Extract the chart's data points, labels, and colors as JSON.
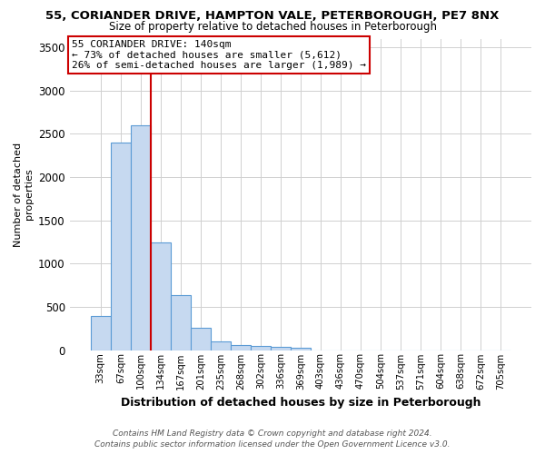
{
  "title": "55, CORIANDER DRIVE, HAMPTON VALE, PETERBOROUGH, PE7 8NX",
  "subtitle": "Size of property relative to detached houses in Peterborough",
  "xlabel": "Distribution of detached houses by size in Peterborough",
  "ylabel": "Number of detached\nproperties",
  "footer_line1": "Contains HM Land Registry data © Crown copyright and database right 2024.",
  "footer_line2": "Contains public sector information licensed under the Open Government Licence v3.0.",
  "bin_labels": [
    "33sqm",
    "67sqm",
    "100sqm",
    "134sqm",
    "167sqm",
    "201sqm",
    "235sqm",
    "268sqm",
    "302sqm",
    "336sqm",
    "369sqm",
    "403sqm",
    "436sqm",
    "470sqm",
    "504sqm",
    "537sqm",
    "571sqm",
    "604sqm",
    "638sqm",
    "672sqm",
    "705sqm"
  ],
  "bar_values": [
    390,
    2400,
    2600,
    1240,
    640,
    255,
    100,
    55,
    50,
    40,
    30,
    0,
    0,
    0,
    0,
    0,
    0,
    0,
    0,
    0,
    0
  ],
  "property_label": "55 CORIANDER DRIVE: 140sqm",
  "annotation_line1": "← 73% of detached houses are smaller (5,612)",
  "annotation_line2": "26% of semi-detached houses are larger (1,989) →",
  "red_line_bin_index": 3,
  "bar_color": "#c6d9f0",
  "bar_edge_color": "#5b9bd5",
  "red_line_color": "#cc0000",
  "annotation_box_edge": "#cc0000",
  "ylim": [
    0,
    3600
  ],
  "yticks": [
    0,
    500,
    1000,
    1500,
    2000,
    2500,
    3000,
    3500
  ],
  "background_color": "#ffffff",
  "grid_color": "#d0d0d0"
}
